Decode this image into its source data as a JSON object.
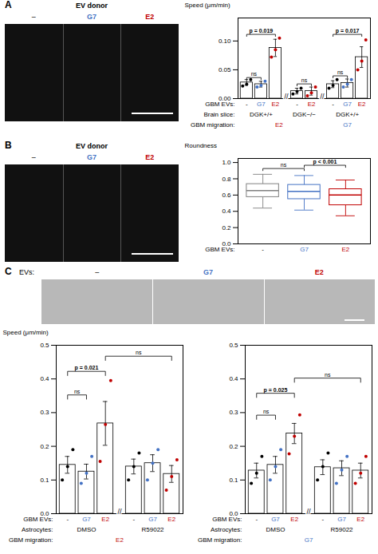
{
  "chart_data": [
    {
      "type": "image",
      "panel": "A",
      "title": "EV donor",
      "labels": [
        "–",
        "G7",
        "E2"
      ],
      "label_colors": [
        "black",
        "#4472c4",
        "#c00000"
      ]
    },
    {
      "type": "bar",
      "categories": [
        "-",
        "G7",
        "E2",
        "-",
        "E2",
        "-",
        "G7",
        "E2"
      ],
      "values": [
        0.028,
        0.025,
        0.088,
        0.013,
        0.013,
        0.025,
        0.027,
        0.072
      ],
      "errors": [
        0.005,
        0.005,
        0.015,
        0.005,
        0.007,
        0.006,
        0.007,
        0.018
      ],
      "dots": [
        [
          0.022,
          0.025,
          0.033
        ],
        [
          0.02,
          0.023,
          0.03
        ],
        [
          0.072,
          0.085,
          0.105
        ],
        [
          0.008,
          0.012,
          0.018
        ],
        [
          0.005,
          0.01,
          0.02
        ],
        [
          0.018,
          0.023,
          0.033
        ],
        [
          0.02,
          0.025,
          0.033
        ],
        [
          0.05,
          0.065,
          0.102
        ]
      ],
      "colors": [
        "black",
        "#4472c4",
        "#c00000",
        "black",
        "#c00000",
        "black",
        "#4472c4",
        "#c00000"
      ],
      "ylabel": "Speed (μm/min)",
      "ylim": [
        0,
        0.14
      ],
      "yticks": [
        {
          "value": 0.0,
          "label": "0.00"
        },
        0.05,
        {
          "value": 0.1,
          "label": "0.10"
        }
      ],
      "xlabel": "GBM EVs:",
      "x_rows": [
        {
          "label": "Brain slice:",
          "labels": [
            "DGK+/+",
            "DGK+/+",
            "DGK+/+",
            "DGK−/−",
            "DGK−/−",
            "DGK+/+",
            "DGK+/+",
            "DGK+/+"
          ]
        },
        {
          "label": "GBM migration:",
          "labels": [
            "E2",
            "E2",
            "E2",
            "E2",
            "E2",
            "G7",
            "G7",
            "G7"
          ],
          "colors": [
            "#c00000",
            "#c00000",
            "#c00000",
            "#c00000",
            "#c00000",
            "#4472c4",
            "#4472c4",
            "#4472c4"
          ]
        }
      ],
      "axis_break": "//",
      "brackets": [
        {
          "from": 0,
          "to": 1,
          "y": 0.033,
          "label": "ns"
        },
        {
          "from": 0,
          "to": 2,
          "y": 0.108,
          "label": "p = 0.019"
        },
        {
          "from": 3,
          "to": 4,
          "y": 0.022,
          "label": "ns"
        },
        {
          "from": 5,
          "to": 6,
          "y": 0.036,
          "label": "ns"
        },
        {
          "from": 5,
          "to": 7,
          "y": 0.108,
          "label": "p = 0.017"
        }
      ]
    },
    {
      "type": "image",
      "panel": "B",
      "title": "EV donor",
      "labels": [
        "–",
        "G7",
        "E2"
      ],
      "label_colors": [
        "black",
        "#4472c4",
        "#c00000"
      ]
    },
    {
      "type": "box",
      "categories": [
        "-",
        "G7",
        "E2"
      ],
      "boxes": [
        {
          "median": 0.655,
          "q1": 0.575,
          "q3": 0.735,
          "whislo": 0.44,
          "whishi": 0.855
        },
        {
          "median": 0.645,
          "q1": 0.55,
          "q3": 0.725,
          "whislo": 0.415,
          "whishi": 0.84
        },
        {
          "median": 0.6,
          "q1": 0.475,
          "q3": 0.672,
          "whislo": 0.345,
          "whishi": 0.785
        }
      ],
      "colors": [
        "#808080",
        "#4472c4",
        "#c00000"
      ],
      "label_colors": [
        "black",
        "#4472c4",
        "#c00000"
      ],
      "ylabel": "Roundness",
      "ylim": [
        0.0,
        1.05
      ],
      "yticks": [
        {
          "value": 0.0,
          "label": "0.0"
        },
        0.2,
        0.4,
        0.6,
        0.8,
        {
          "value": 1.0,
          "label": "1.0"
        }
      ],
      "xlabel": "GBM EVs:",
      "brackets": [
        {
          "from": 0,
          "to": 1,
          "y": 0.9,
          "label": "ns"
        },
        {
          "from": 1,
          "to": 2,
          "y": 0.94,
          "label": "p < 0.001"
        }
      ]
    },
    {
      "type": "image",
      "panel": "C",
      "title": "EVs:",
      "labels": [
        "–",
        "G7",
        "E2"
      ],
      "label_colors": [
        "black",
        "#4472c4",
        "#c00000"
      ]
    },
    {
      "type": "bar",
      "categories": [
        "-",
        "G7",
        "E2",
        "-",
        "G7",
        "E2"
      ],
      "values": [
        0.145,
        0.125,
        0.268,
        0.14,
        0.15,
        0.118
      ],
      "errors": [
        0.025,
        0.022,
        0.065,
        0.022,
        0.025,
        0.025
      ],
      "dots": [
        [
          0.1,
          0.14,
          0.19
        ],
        [
          0.09,
          0.12,
          0.17
        ],
        [
          0.155,
          0.265,
          0.395
        ],
        [
          0.1,
          0.14,
          0.18
        ],
        [
          0.1,
          0.15,
          0.19
        ],
        [
          0.07,
          0.11,
          0.16
        ]
      ],
      "colors": [
        "black",
        "#4472c4",
        "#c00000",
        "black",
        "#4472c4",
        "#c00000"
      ],
      "ylabel": "Speed (μm/min)",
      "ylim": [
        0,
        0.5
      ],
      "yticks": [
        {
          "value": 0.0,
          "label": "0.0"
        },
        0.1,
        0.2,
        0.3,
        0.4,
        0.5
      ],
      "xlabel": "GBM EVs:",
      "x_rows": [
        {
          "label": "Astrocytes:",
          "labels": [
            "DMSO",
            "DMSO",
            "DMSO",
            "R59022",
            "R59022",
            "R59022"
          ]
        },
        {
          "label": "GBM migration:",
          "labels": [
            "E2",
            "E2",
            "E2",
            "E2",
            "E2",
            "E2"
          ],
          "colors": [
            "#c00000",
            "#c00000",
            "#c00000",
            "#c00000",
            "#c00000",
            "#c00000"
          ]
        }
      ],
      "axis_break": "//",
      "brackets": [
        {
          "from": 0,
          "to": 1,
          "y": 0.34,
          "label": "ns"
        },
        {
          "from": 0,
          "to": 2,
          "y": 0.41,
          "label": "p = 0.021"
        },
        {
          "from": 2,
          "to": 5,
          "y": 0.455,
          "label": "ns"
        }
      ]
    },
    {
      "type": "bar",
      "categories": [
        "-",
        "G7",
        "E2",
        "-",
        "G7",
        "E2"
      ],
      "values": [
        0.128,
        0.145,
        0.238,
        0.138,
        0.135,
        0.128
      ],
      "errors": [
        0.022,
        0.025,
        0.03,
        0.022,
        0.022,
        0.022
      ],
      "dots": [
        [
          0.09,
          0.12,
          0.17
        ],
        [
          0.1,
          0.14,
          0.19
        ],
        [
          0.178,
          0.23,
          0.293
        ],
        [
          0.1,
          0.14,
          0.18
        ],
        [
          0.09,
          0.13,
          0.17
        ],
        [
          0.09,
          0.12,
          0.17
        ]
      ],
      "colors": [
        "black",
        "#4472c4",
        "#c00000",
        "black",
        "#4472c4",
        "#c00000"
      ],
      "ylim": [
        0,
        0.5
      ],
      "yticks": [
        {
          "value": 0.0,
          "label": "0.0"
        },
        0.1,
        0.2,
        0.3,
        0.4,
        0.5
      ],
      "xlabel": "GBM EVs:",
      "x_rows": [
        {
          "label": "Astrocytes:",
          "labels": [
            "DMSO",
            "DMSO",
            "DMSO",
            "R59022",
            "R59022",
            "R59022"
          ]
        },
        {
          "label": "GBM migration:",
          "labels": [
            "G7",
            "G7",
            "G7",
            "G7",
            "G7",
            "G7"
          ],
          "colors": [
            "#4472c4",
            "#4472c4",
            "#4472c4",
            "#4472c4",
            "#4472c4",
            "#4472c4"
          ]
        }
      ],
      "axis_break": "//",
      "brackets": [
        {
          "from": 0,
          "to": 1,
          "y": 0.28,
          "label": "ns"
        },
        {
          "from": 0,
          "to": 2,
          "y": 0.345,
          "label": "p = 0.025"
        },
        {
          "from": 2,
          "to": 5,
          "y": 0.39,
          "label": "ns"
        }
      ]
    }
  ]
}
